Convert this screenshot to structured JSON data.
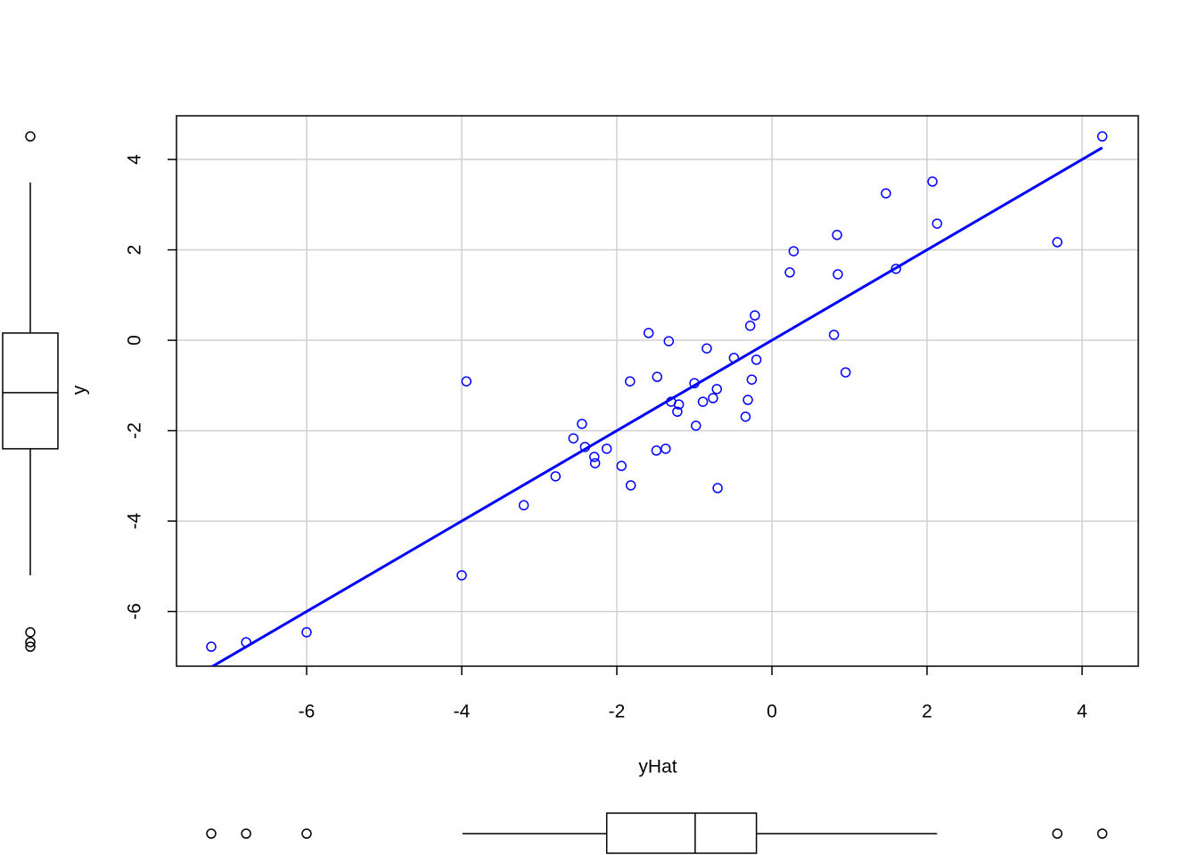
{
  "chart_data": {
    "type": "scatter",
    "xlabel": "yHat",
    "ylabel": "y",
    "xlim": [
      -7.678,
      4.724
    ],
    "ylim": [
      -7.21,
      4.966
    ],
    "xticks": [
      -6,
      -4,
      -2,
      0,
      2,
      4
    ],
    "yticks": [
      -6,
      -4,
      -2,
      0,
      2,
      4
    ],
    "grid": true,
    "color": "#0000ff",
    "x": [
      -7.23,
      -6.78,
      -6.0,
      -4.0,
      -3.94,
      -3.2,
      -2.79,
      -2.56,
      -2.45,
      -2.41,
      -2.29,
      -2.28,
      -2.13,
      -1.94,
      -1.83,
      -1.82,
      -1.59,
      -1.49,
      -1.48,
      -1.37,
      -1.33,
      -1.3,
      -1.22,
      -1.2,
      -1.0,
      -0.98,
      -0.89,
      -0.84,
      -0.76,
      -0.71,
      -0.7,
      -0.49,
      -0.34,
      -0.31,
      -0.28,
      -0.26,
      -0.22,
      -0.2,
      0.23,
      0.28,
      0.8,
      0.84,
      0.85,
      0.95,
      1.47,
      1.6,
      2.07,
      2.13,
      3.68,
      4.26
    ],
    "y": [
      -6.78,
      -6.68,
      -6.46,
      -5.2,
      -0.91,
      -3.65,
      -3.01,
      -2.17,
      -1.85,
      -2.36,
      -2.58,
      -2.72,
      -2.4,
      -2.78,
      -0.91,
      -3.21,
      0.16,
      -2.44,
      -0.81,
      -2.4,
      -0.02,
      -1.36,
      -1.58,
      -1.42,
      -0.95,
      -1.89,
      -1.36,
      -0.18,
      -1.28,
      -1.08,
      -3.27,
      -0.39,
      -1.69,
      -1.32,
      0.32,
      -0.87,
      0.55,
      -0.43,
      1.5,
      1.97,
      0.12,
      2.33,
      1.46,
      -0.71,
      3.25,
      1.58,
      3.51,
      2.58,
      2.17,
      4.51
    ],
    "fit_line": {
      "intercept": 0,
      "slope": 1
    },
    "x_boxplot": {
      "whisker_low": -3.99,
      "q1": -2.13,
      "median": -0.99,
      "q3": -0.2,
      "whisker_high": 2.13,
      "outliers": [
        -7.23,
        -6.78,
        -6.0,
        3.68,
        4.26
      ]
    },
    "y_boxplot": {
      "whisker_low": -5.2,
      "q1": -2.4,
      "median": -1.16,
      "q3": 0.16,
      "whisker_high": 3.49,
      "outliers": [
        4.51,
        -6.46,
        -6.68,
        -6.78
      ]
    }
  }
}
